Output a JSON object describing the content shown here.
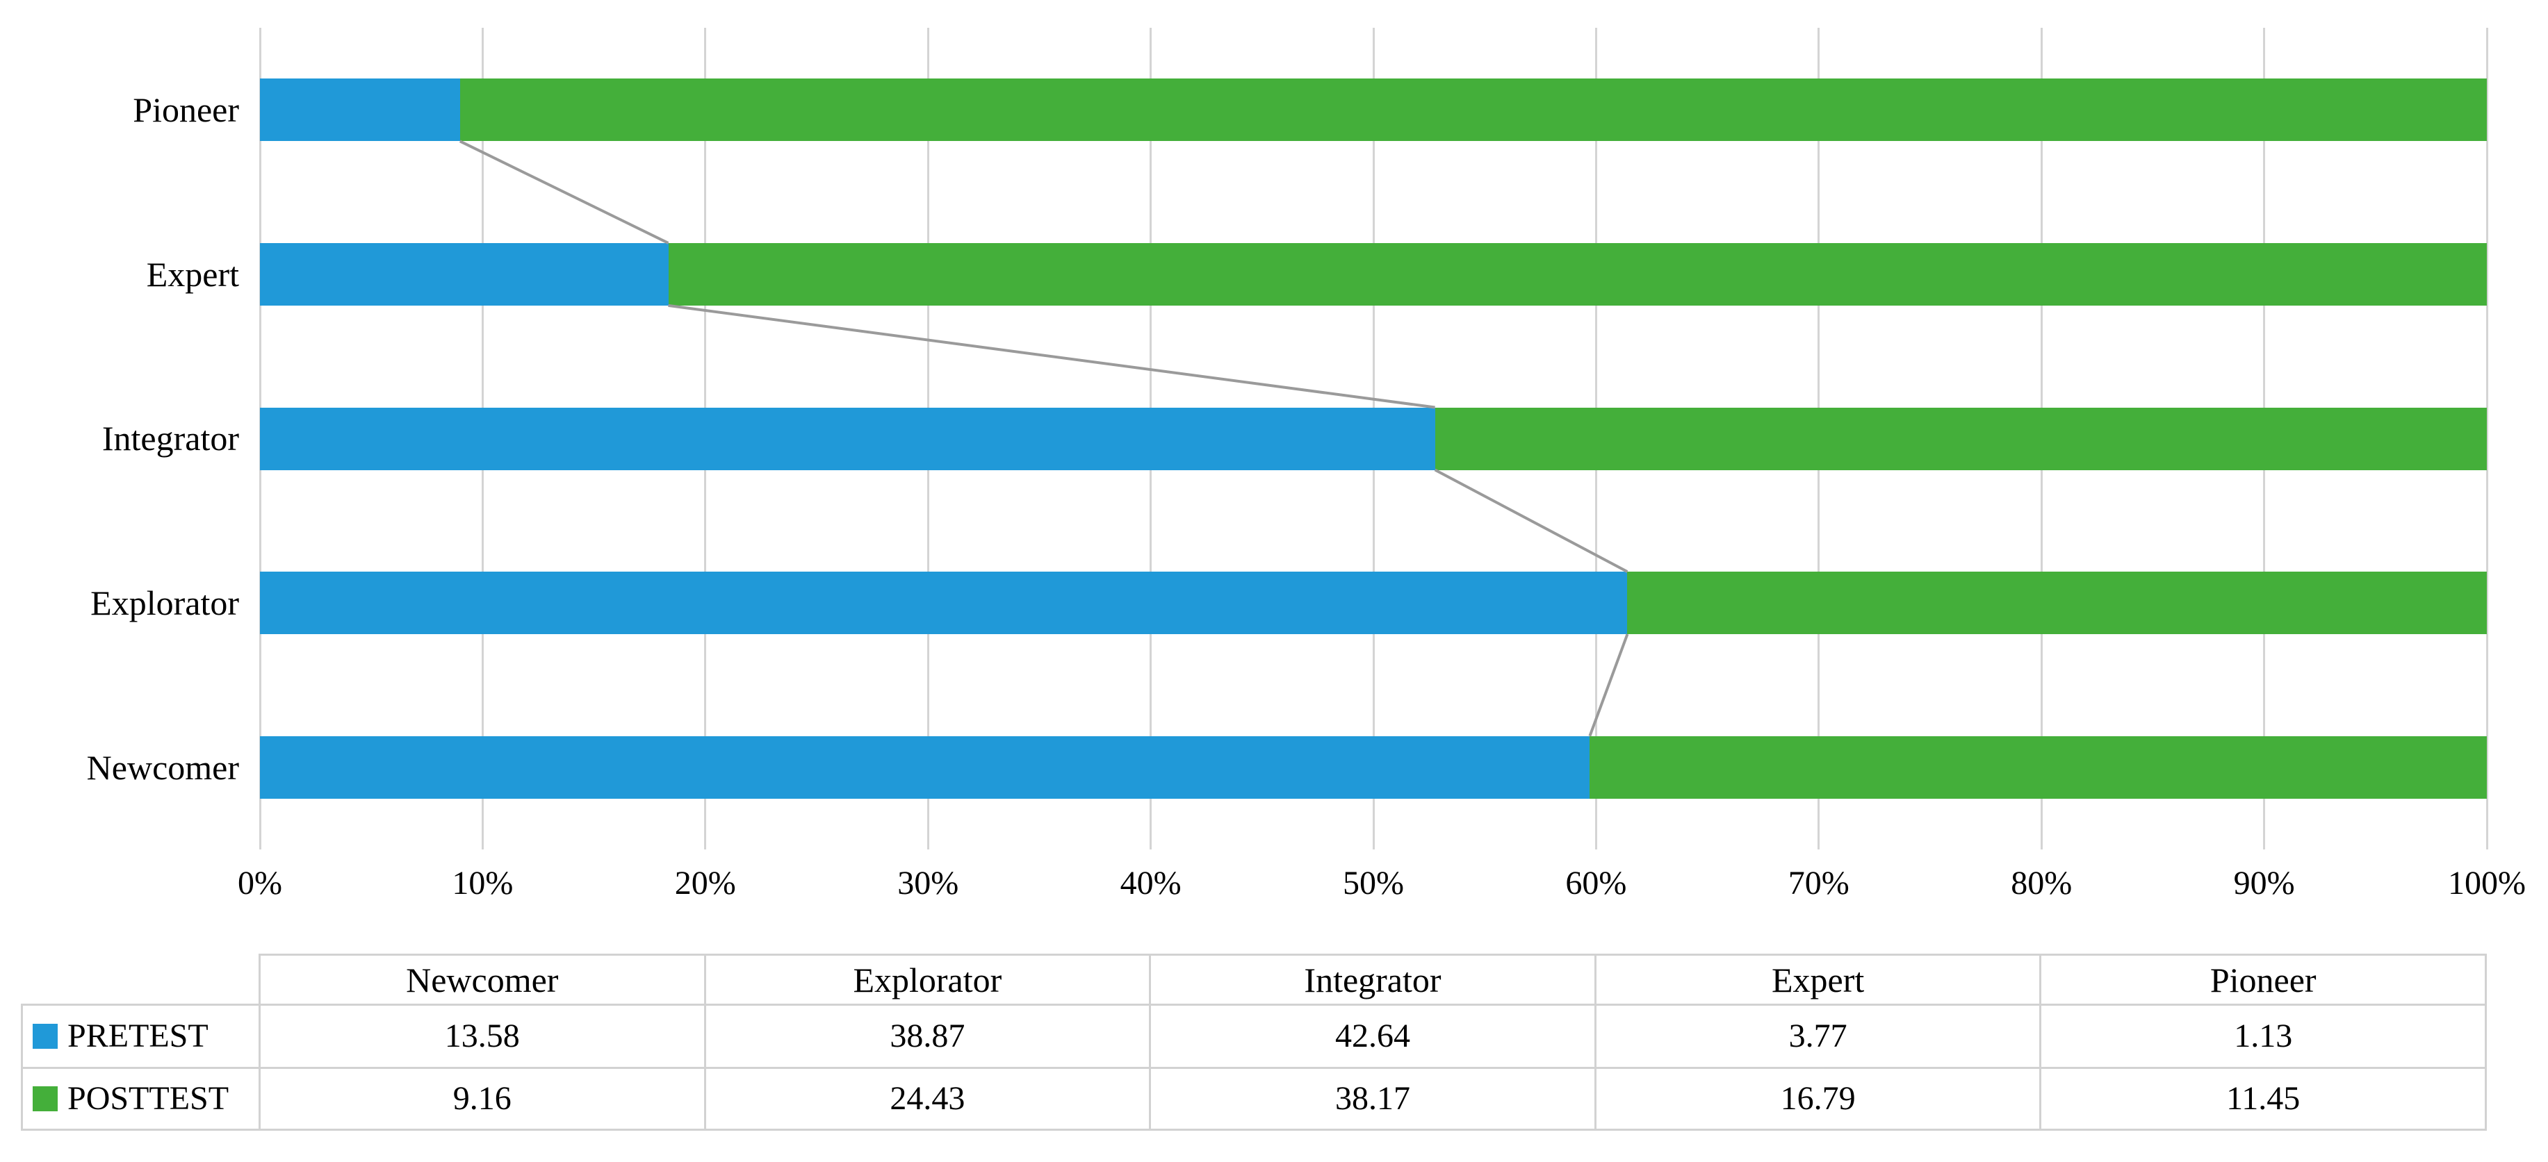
{
  "page": {
    "background": "#ffffff"
  },
  "chart_data": {
    "type": "bar",
    "subtype": "100-percent-stacked",
    "orientation": "horizontal",
    "title": "",
    "categories_top_to_bottom": [
      "Pioneer",
      "Expert",
      "Integrator",
      "Explorator",
      "Newcomer"
    ],
    "series": [
      {
        "name": "PRETEST",
        "color": "#2099d8",
        "values": {
          "Newcomer": 13.58,
          "Explorator": 38.87,
          "Integrator": 42.64,
          "Expert": 3.77,
          "Pioneer": 1.13
        }
      },
      {
        "name": "POSTTEST",
        "color": "#44af3a",
        "values": {
          "Newcomer": 9.16,
          "Explorator": 24.43,
          "Integrator": 38.17,
          "Expert": 16.79,
          "Pioneer": 11.45
        }
      }
    ],
    "x_axis": {
      "min": 0,
      "max": 100,
      "tick_labels": [
        "0%",
        "10%",
        "20%",
        "30%",
        "40%",
        "50%",
        "60%",
        "70%",
        "80%",
        "90%",
        "100%"
      ],
      "gridlines": true
    },
    "legend_position": "in-data-table",
    "series_connector_lines": true,
    "data_table": {
      "column_order": [
        "Newcomer",
        "Explorator",
        "Integrator",
        "Expert",
        "Pioneer"
      ],
      "rows": [
        {
          "label": "PRETEST",
          "key_color": "#2099d8",
          "values": [
            13.58,
            38.87,
            42.64,
            3.77,
            1.13
          ]
        },
        {
          "label": "POSTTEST",
          "key_color": "#44af3a",
          "values": [
            9.16,
            24.43,
            38.17,
            16.79,
            11.45
          ]
        }
      ],
      "value_decimals": 2
    },
    "colors": {
      "pretest": "#2099d8",
      "posttest": "#44af3a",
      "gridline": "#d4d4d4",
      "series_line": "#9a9a9a",
      "table_border": "#d2d2d2",
      "text": "#000000",
      "background": "#ffffff"
    }
  }
}
